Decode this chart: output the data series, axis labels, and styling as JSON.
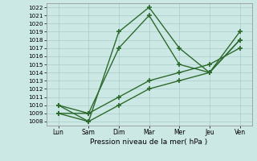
{
  "x_labels": [
    "Lun",
    "Sam",
    "Dim",
    "Mar",
    "Mer",
    "Jeu",
    "Ven"
  ],
  "x_positions": [
    0,
    1,
    2,
    3,
    4,
    5,
    6
  ],
  "lines": [
    {
      "name": "line1_upper",
      "x": [
        0,
        1,
        2,
        3,
        4,
        5,
        6
      ],
      "y": [
        1010,
        1009,
        1017,
        1021,
        1015,
        1014,
        1018
      ]
    },
    {
      "name": "line2_peak",
      "x": [
        0,
        1,
        2,
        3,
        4,
        5,
        6
      ],
      "y": [
        1010,
        1008,
        1019,
        1022,
        1017,
        1014,
        1019
      ]
    },
    {
      "name": "line3_lower",
      "x": [
        0,
        1,
        2,
        3,
        4,
        5,
        6
      ],
      "y": [
        1009,
        1009,
        1011,
        1013,
        1014,
        1015,
        1017
      ]
    },
    {
      "name": "line4_bottom",
      "x": [
        0,
        1,
        2,
        3,
        4,
        5,
        6
      ],
      "y": [
        1009,
        1008,
        1010,
        1012,
        1013,
        1014,
        1018
      ]
    }
  ],
  "line_color": "#2d6a2d",
  "marker": "+",
  "markersize": 4,
  "linewidth": 1.0,
  "markeredgewidth": 1.2,
  "ylim": [
    1007.5,
    1022.5
  ],
  "yticks": [
    1008,
    1009,
    1010,
    1011,
    1012,
    1013,
    1014,
    1015,
    1016,
    1017,
    1018,
    1019,
    1020,
    1021,
    1022
  ],
  "xlabel": "Pression niveau de la mer( hPa )",
  "background_color": "#cce8e4",
  "grid_color": "#aaccca",
  "axes_bg": "#cce8e4",
  "xlabel_fontsize": 6.5,
  "ytick_fontsize": 5.2,
  "xtick_fontsize": 5.5
}
